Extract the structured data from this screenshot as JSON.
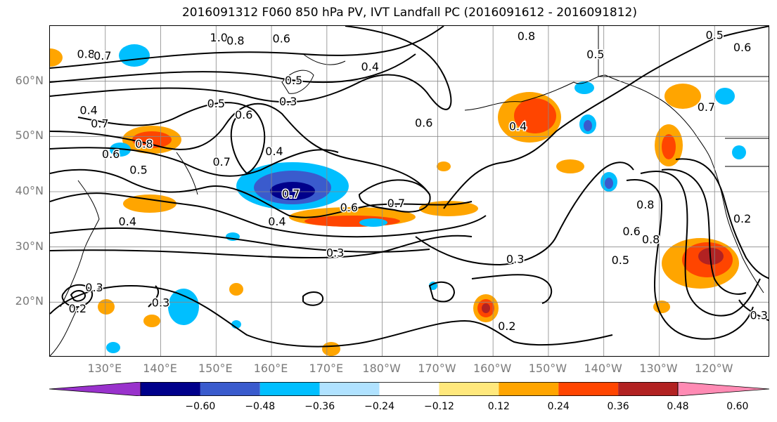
{
  "title": "2016091312 F060 850 hPa PV, IVT Landfall PC (2016091612 - 2016091812)",
  "latitude_labels": [
    {
      "text": "60°N",
      "lat": 60
    },
    {
      "text": "50°N",
      "lat": 50
    },
    {
      "text": "40°N",
      "lat": 40
    },
    {
      "text": "30°N",
      "lat": 30
    },
    {
      "text": "20°N",
      "lat": 20
    }
  ],
  "longitude_labels": [
    {
      "text": "130°E",
      "lon": 130
    },
    {
      "text": "140°E",
      "lon": 140
    },
    {
      "text": "150°E",
      "lon": 150
    },
    {
      "text": "160°E",
      "lon": 160
    },
    {
      "text": "170°E",
      "lon": 170
    },
    {
      "text": "180°W",
      "lon": 180
    },
    {
      "text": "170°W",
      "lon": 190
    },
    {
      "text": "160°W",
      "lon": 200
    },
    {
      "text": "150°W",
      "lon": 210
    },
    {
      "text": "140°W",
      "lon": 220
    },
    {
      "text": "130°W",
      "lon": 230
    },
    {
      "text": "120°W",
      "lon": 240
    }
  ],
  "extent": {
    "lon_min": 120,
    "lon_max": 250,
    "lat_min": 10,
    "lat_max": 70
  },
  "colorbar": {
    "colors": [
      "#9932CC",
      "#00008B",
      "#3A5BCD",
      "#00BFFF",
      "#B0E2FF",
      "#FFFFFF",
      "#FFE87C",
      "#FFA500",
      "#FF4500",
      "#B22222",
      "#FF8BB4"
    ],
    "tick_labels": [
      "−0.60",
      "−0.48",
      "−0.36",
      "−0.24",
      "−0.12",
      "0.12",
      "0.24",
      "0.36",
      "0.48",
      "0.60"
    ]
  },
  "contour_labels": [
    {
      "text": "1.0",
      "lon": 150.5,
      "lat": 67.8
    },
    {
      "text": "0.8",
      "lon": 153.5,
      "lat": 67.2
    },
    {
      "text": "0.6",
      "lon": 161.8,
      "lat": 67.6
    },
    {
      "text": "0.8",
      "lon": 126.5,
      "lat": 64.8
    },
    {
      "text": "0.7",
      "lon": 129.5,
      "lat": 64.5
    },
    {
      "text": "0.8",
      "lon": 206,
      "lat": 68
    },
    {
      "text": "0.5",
      "lon": 240,
      "lat": 68.2
    },
    {
      "text": "0.6",
      "lon": 245,
      "lat": 66
    },
    {
      "text": "0.5",
      "lon": 218.5,
      "lat": 64.7
    },
    {
      "text": "0.4",
      "lon": 177.8,
      "lat": 62.5
    },
    {
      "text": "0.5",
      "lon": 164,
      "lat": 60
    },
    {
      "text": "0.3",
      "lon": 163,
      "lat": 56.2
    },
    {
      "text": "0.5",
      "lon": 150,
      "lat": 55.8
    },
    {
      "text": "0.6",
      "lon": 155,
      "lat": 53.8
    },
    {
      "text": "0.7",
      "lon": 129,
      "lat": 52.2
    },
    {
      "text": "0.4",
      "lon": 127,
      "lat": 54.6
    },
    {
      "text": "0.6",
      "lon": 187.5,
      "lat": 52.3
    },
    {
      "text": "0.4",
      "lon": 204.5,
      "lat": 51.7
    },
    {
      "text": "0.7",
      "lon": 238.5,
      "lat": 55.2
    },
    {
      "text": "0.4",
      "lon": 160.5,
      "lat": 47.2
    },
    {
      "text": "0.7",
      "lon": 151,
      "lat": 45.3
    },
    {
      "text": "0.6",
      "lon": 131,
      "lat": 46.7
    },
    {
      "text": "0.5",
      "lon": 136,
      "lat": 43.8
    },
    {
      "text": "0.8",
      "lon": 137,
      "lat": 48.5
    },
    {
      "text": "0.7",
      "lon": 163.5,
      "lat": 39.5
    },
    {
      "text": "0.6",
      "lon": 174,
      "lat": 37
    },
    {
      "text": "0.7",
      "lon": 182.5,
      "lat": 37.8
    },
    {
      "text": "0.4",
      "lon": 161,
      "lat": 34.5
    },
    {
      "text": "0.4",
      "lon": 134,
      "lat": 34.5
    },
    {
      "text": "0.3",
      "lon": 171.5,
      "lat": 28.8
    },
    {
      "text": "0.3",
      "lon": 204,
      "lat": 27.7
    },
    {
      "text": "0.2",
      "lon": 202.5,
      "lat": 15.5
    },
    {
      "text": "0.3",
      "lon": 140,
      "lat": 19.8
    },
    {
      "text": "0.3",
      "lon": 128,
      "lat": 22.5
    },
    {
      "text": "0.2",
      "lon": 125,
      "lat": 18.7
    },
    {
      "text": "0.8",
      "lon": 227.5,
      "lat": 37.5
    },
    {
      "text": "0.6",
      "lon": 225,
      "lat": 32.7
    },
    {
      "text": "0.8",
      "lon": 228.5,
      "lat": 31.2
    },
    {
      "text": "0.5",
      "lon": 223,
      "lat": 27.5
    },
    {
      "text": "0.2",
      "lon": 245,
      "lat": 35
    },
    {
      "text": "0.3",
      "lon": 248,
      "lat": 17.5
    }
  ]
}
